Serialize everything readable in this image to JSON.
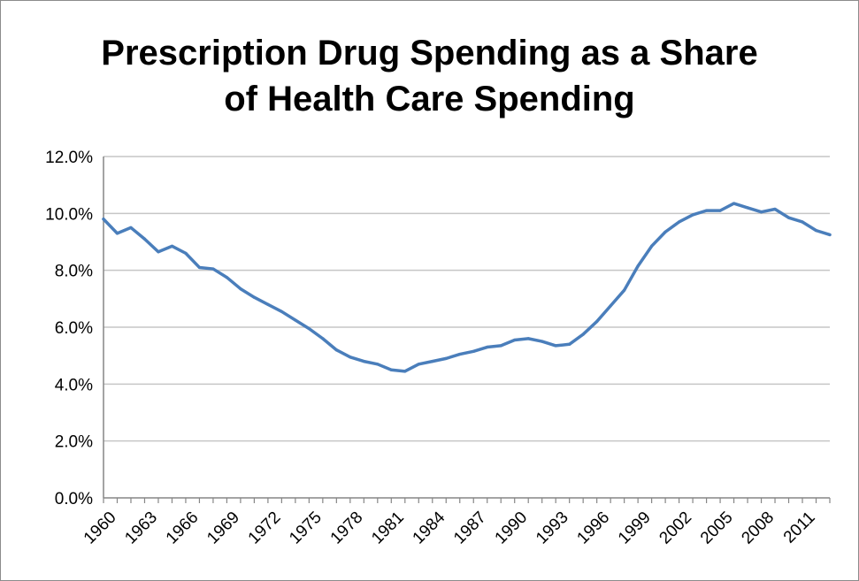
{
  "chart_data": {
    "type": "line",
    "title": "Prescription Drug Spending as a Share of Health Care Spending",
    "title_lines": [
      "Prescription Drug Spending as a Share",
      "of Health Care Spending"
    ],
    "xlabel": "",
    "ylabel": "",
    "xlim": [
      1960,
      2013
    ],
    "ylim": [
      0,
      12
    ],
    "y_ticks": [
      0,
      2,
      4,
      6,
      8,
      10,
      12
    ],
    "y_tick_labels": [
      "0.0%",
      "2.0%",
      "4.0%",
      "6.0%",
      "8.0%",
      "10.0%",
      "12.0%"
    ],
    "x_tick_labels": [
      "1960",
      "1963",
      "1966",
      "1969",
      "1972",
      "1975",
      "1978",
      "1981",
      "1984",
      "1987",
      "1990",
      "1993",
      "1996",
      "1999",
      "2002",
      "2005",
      "2008",
      "2011"
    ],
    "grid": true,
    "legend": "none",
    "series": [
      {
        "color": "#4a7ebb",
        "x": [
          1960,
          1961,
          1962,
          1963,
          1964,
          1965,
          1966,
          1967,
          1968,
          1969,
          1970,
          1971,
          1972,
          1973,
          1974,
          1975,
          1976,
          1977,
          1978,
          1979,
          1980,
          1981,
          1982,
          1983,
          1984,
          1985,
          1986,
          1987,
          1988,
          1989,
          1990,
          1991,
          1992,
          1993,
          1994,
          1995,
          1996,
          1997,
          1998,
          1999,
          2000,
          2001,
          2002,
          2003,
          2004,
          2005,
          2006,
          2007,
          2008,
          2009,
          2010,
          2011,
          2012,
          2013
        ],
        "values": [
          9.8,
          9.3,
          9.5,
          9.1,
          8.65,
          8.85,
          8.6,
          8.1,
          8.05,
          7.75,
          7.35,
          7.05,
          6.8,
          6.55,
          6.25,
          5.95,
          5.6,
          5.2,
          4.95,
          4.8,
          4.7,
          4.5,
          4.45,
          4.7,
          4.8,
          4.9,
          5.05,
          5.15,
          5.3,
          5.35,
          5.55,
          5.6,
          5.5,
          5.35,
          5.4,
          5.75,
          6.2,
          6.75,
          7.3,
          8.15,
          8.85,
          9.35,
          9.7,
          9.95,
          10.1,
          10.1,
          10.35,
          10.2,
          10.05,
          10.15,
          9.85,
          9.7,
          9.4,
          9.25
        ]
      }
    ]
  }
}
